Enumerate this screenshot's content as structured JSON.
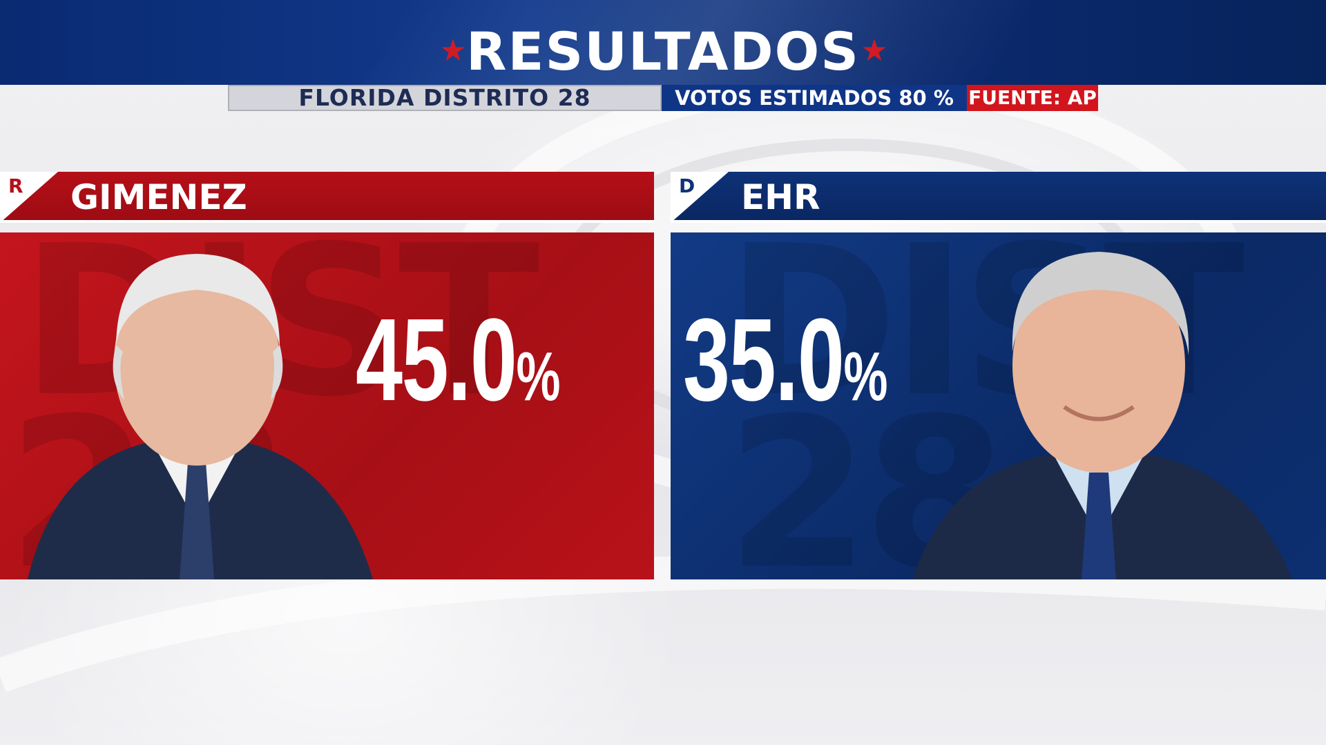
{
  "header": {
    "title": "RESULTADOS",
    "star_glyph": "★",
    "accent_red": "#d01c24",
    "accent_blue": "#0f3587"
  },
  "subbar": {
    "district": "FLORIDA DISTRITO 28",
    "votes": "VOTOS ESTIMADOS 80 %",
    "source": "FUENTE: AP"
  },
  "candidates": [
    {
      "party": "R",
      "name": "GIMENEZ",
      "percent": "45.0",
      "percent_sign": "%",
      "color": "#b50f18"
    },
    {
      "party": "D",
      "name": "EHR",
      "percent": "35.0",
      "percent_sign": "%",
      "color": "#0e3278"
    }
  ]
}
